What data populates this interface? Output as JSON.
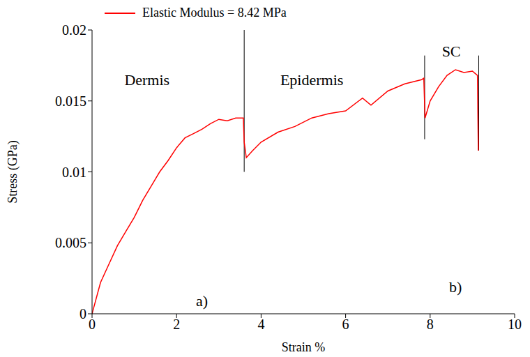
{
  "chart_data": {
    "type": "line",
    "x_label": "Strain %",
    "y_label": "Stress (GPa)",
    "xlim": [
      0,
      10
    ],
    "xticks": [
      0,
      2,
      4,
      6,
      8,
      10
    ],
    "ylim": [
      0,
      0.02
    ],
    "yticks": [
      0,
      0.005,
      0.01,
      0.015,
      0.02
    ],
    "grid": false,
    "legend": "upper left",
    "series": [
      {
        "name": "Elastic Modulus = 8.42 MPa",
        "color": "#ff0000",
        "x": [
          0,
          0.2,
          0.4,
          0.6,
          0.8,
          1.0,
          1.2,
          1.4,
          1.6,
          1.8,
          2.0,
          2.2,
          2.4,
          2.6,
          2.8,
          3.0,
          3.2,
          3.4,
          3.58,
          3.6,
          3.65,
          3.8,
          4.0,
          4.4,
          4.8,
          5.2,
          5.6,
          6.0,
          6.4,
          6.6,
          7.0,
          7.4,
          7.8,
          7.85,
          7.88,
          8.0,
          8.2,
          8.4,
          8.6,
          8.8,
          9.0,
          9.12,
          9.14
        ],
        "values": [
          0,
          0.0022,
          0.0035,
          0.0048,
          0.0058,
          0.0068,
          0.008,
          0.009,
          0.01,
          0.0108,
          0.0117,
          0.0124,
          0.0127,
          0.013,
          0.0134,
          0.0137,
          0.0136,
          0.0138,
          0.0138,
          0.0121,
          0.011,
          0.0115,
          0.0121,
          0.0128,
          0.0132,
          0.0138,
          0.0141,
          0.0143,
          0.0152,
          0.0147,
          0.0157,
          0.0162,
          0.0165,
          0.0166,
          0.0138,
          0.015,
          0.016,
          0.0168,
          0.0172,
          0.017,
          0.0171,
          0.0168,
          0.0115
        ]
      }
    ],
    "separators": [
      {
        "x": 3.6,
        "y0": 0.01,
        "y1": 0.02
      },
      {
        "x": 7.87,
        "y0": 0.0123,
        "y1": 0.0182
      },
      {
        "x": 9.15,
        "y0": 0.0115,
        "y1": 0.0182
      }
    ],
    "annotations": [
      {
        "text": "Dermis",
        "x": 1.3,
        "y": 0.0165
      },
      {
        "text": "Epidermis",
        "x": 5.2,
        "y": 0.0165
      },
      {
        "text": "SC",
        "x": 8.5,
        "y": 0.0185
      },
      {
        "text": "a)",
        "x": 2.6,
        "y": 0.0009
      },
      {
        "text": "b)",
        "x": 8.6,
        "y": 0.0019
      }
    ]
  }
}
